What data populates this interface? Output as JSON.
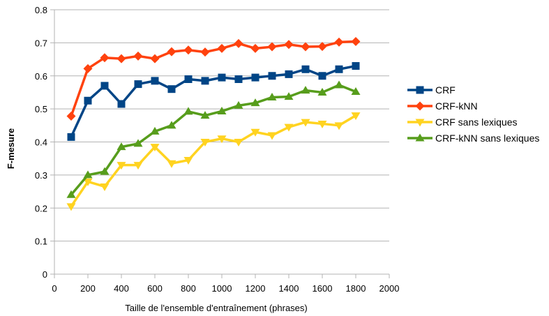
{
  "chart_data": {
    "type": "line",
    "title": "",
    "xlabel": "Taille de l'ensemble d'entraînement (phrases)",
    "ylabel": "F-mesure",
    "xlim": [
      0,
      2000
    ],
    "ylim": [
      0,
      0.8
    ],
    "xticks": [
      "0",
      "200",
      "400",
      "600",
      "800",
      "1000",
      "1200",
      "1400",
      "1600",
      "1800",
      "2000"
    ],
    "yticks": [
      "0",
      "0.1",
      "0.2",
      "0.3",
      "0.4",
      "0.5",
      "0.6",
      "0.7",
      "0.8"
    ],
    "grid": "horizontal",
    "legend_position": "right",
    "x": [
      100,
      200,
      300,
      400,
      500,
      600,
      700,
      800,
      900,
      1000,
      1100,
      1200,
      1300,
      1400,
      1500,
      1600,
      1700,
      1800
    ],
    "series": [
      {
        "name": "CRF",
        "color": "#004586",
        "marker": "square",
        "values": [
          0.415,
          0.525,
          0.57,
          0.515,
          0.575,
          0.585,
          0.56,
          0.59,
          0.585,
          0.595,
          0.59,
          0.595,
          0.6,
          0.605,
          0.62,
          0.6,
          0.62,
          0.63
        ]
      },
      {
        "name": "CRF-kNN",
        "color": "#ff420e",
        "marker": "diamond",
        "values": [
          0.478,
          0.622,
          0.655,
          0.652,
          0.66,
          0.652,
          0.673,
          0.678,
          0.672,
          0.683,
          0.698,
          0.683,
          0.688,
          0.695,
          0.688,
          0.689,
          0.702,
          0.704
        ]
      },
      {
        "name": "CRF sans lexiques",
        "color": "#ffd320",
        "marker": "triangle-down",
        "values": [
          0.205,
          0.28,
          0.265,
          0.33,
          0.33,
          0.385,
          0.335,
          0.345,
          0.4,
          0.41,
          0.4,
          0.43,
          0.42,
          0.445,
          0.46,
          0.455,
          0.45,
          0.48
        ]
      },
      {
        "name": "CRF-kNN sans lexiques",
        "color": "#579d1c",
        "marker": "triangle-up",
        "values": [
          0.24,
          0.3,
          0.31,
          0.385,
          0.395,
          0.432,
          0.45,
          0.492,
          0.48,
          0.493,
          0.51,
          0.518,
          0.535,
          0.537,
          0.556,
          0.55,
          0.572,
          0.552
        ]
      }
    ]
  }
}
